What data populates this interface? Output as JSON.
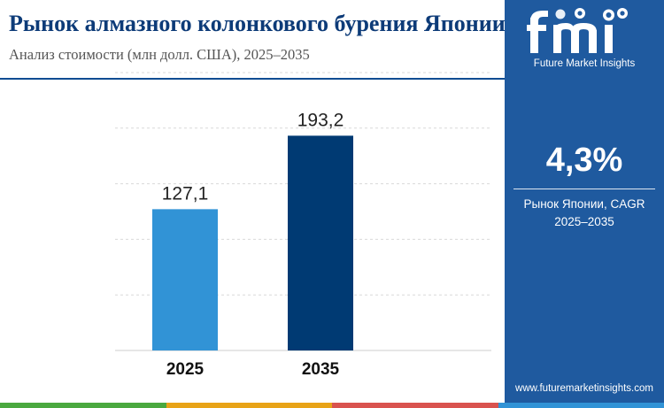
{
  "header": {
    "title": "Рынок алмазного колонкового бурения Японии",
    "subtitle": "Анализ стоимости (млн долл. США), 2025–2035"
  },
  "chart_data": {
    "type": "bar",
    "categories": [
      "2025",
      "2035"
    ],
    "values": [
      127.1,
      193.2
    ],
    "value_labels": [
      "127,1",
      "193,2"
    ],
    "ylim": [
      0,
      250
    ],
    "grid": true,
    "bar_colors": [
      "#3193d6",
      "#003a73"
    ]
  },
  "side_panel": {
    "brand_name": "Future Market Insights",
    "logo_alt": "fmi-logo",
    "cagr_value": "4,3%",
    "cagr_label_line1": "Рынок Японии, CAGR",
    "cagr_label_line2": "2025–2035",
    "website": "www.futuremarketinsights.com"
  },
  "theme": {
    "panel_color": "#1f5a9f",
    "title_color": "#0d3b78",
    "strip_colors": [
      "#4aa83f",
      "#e8a317",
      "#d9534f",
      "#3193d6"
    ]
  }
}
